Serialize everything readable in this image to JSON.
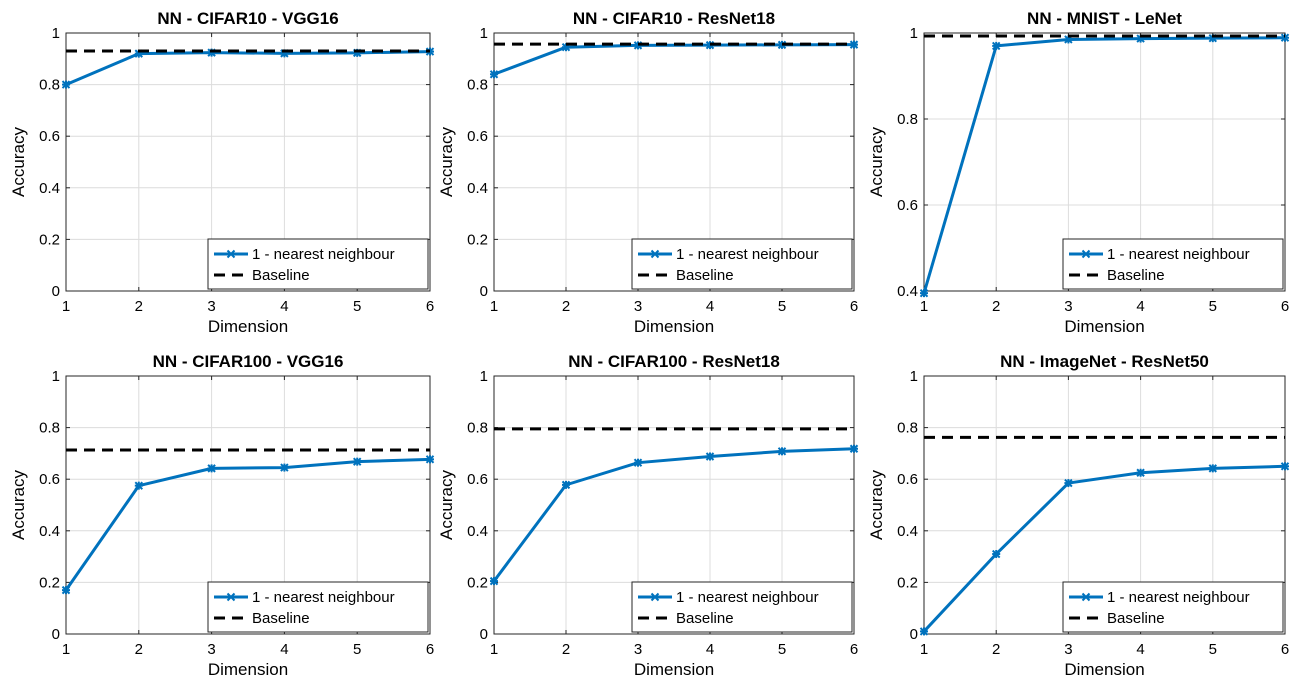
{
  "colors": {
    "series": "#0072bd",
    "baseline": "#000000",
    "grid": "#dcdcdc",
    "axes": "#262626"
  },
  "chart_data": [
    {
      "type": "line",
      "title": "NN - CIFAR10 - VGG16",
      "xlabel": "Dimension",
      "ylabel": "Accuracy",
      "xlim": [
        1,
        6
      ],
      "ylim": [
        0,
        1
      ],
      "xticks": [
        1,
        2,
        3,
        4,
        5,
        6
      ],
      "yticks": [
        0,
        0.2,
        0.4,
        0.6,
        0.8,
        1
      ],
      "ytick_labels": [
        "0",
        "0.2",
        "0.4",
        "0.6",
        "0.8",
        "1"
      ],
      "grid": true,
      "legend_position": "bottom-right",
      "x": [
        1,
        2,
        3,
        4,
        5,
        6
      ],
      "series": [
        {
          "name": "1 - nearest neighbour",
          "style": "solid-marker",
          "values": [
            0.8,
            0.92,
            0.924,
            0.921,
            0.923,
            0.928
          ]
        },
        {
          "name": "Baseline",
          "style": "dashed",
          "values": [
            0.93,
            0.93,
            0.93,
            0.93,
            0.93,
            0.93
          ]
        }
      ]
    },
    {
      "type": "line",
      "title": "NN - CIFAR10 - ResNet18",
      "xlabel": "Dimension",
      "ylabel": "Accuracy",
      "xlim": [
        1,
        6
      ],
      "ylim": [
        0,
        1
      ],
      "xticks": [
        1,
        2,
        3,
        4,
        5,
        6
      ],
      "yticks": [
        0,
        0.2,
        0.4,
        0.6,
        0.8,
        1
      ],
      "ytick_labels": [
        "0",
        "0.2",
        "0.4",
        "0.6",
        "0.8",
        "1"
      ],
      "grid": true,
      "legend_position": "bottom-right",
      "x": [
        1,
        2,
        3,
        4,
        5,
        6
      ],
      "series": [
        {
          "name": "1 - nearest neighbour",
          "style": "solid-marker",
          "values": [
            0.84,
            0.945,
            0.952,
            0.953,
            0.954,
            0.955
          ]
        },
        {
          "name": "Baseline",
          "style": "dashed",
          "values": [
            0.957,
            0.957,
            0.957,
            0.957,
            0.957,
            0.957
          ]
        }
      ]
    },
    {
      "type": "line",
      "title": "NN - MNIST - LeNet",
      "xlabel": "Dimension",
      "ylabel": "Accuracy",
      "xlim": [
        1,
        6
      ],
      "ylim": [
        0.4,
        1
      ],
      "xticks": [
        1,
        2,
        3,
        4,
        5,
        6
      ],
      "yticks": [
        0.4,
        0.6,
        0.8,
        1
      ],
      "ytick_labels": [
        "0.4",
        "0.6",
        "0.8",
        "1"
      ],
      "grid": true,
      "legend_position": "bottom-right",
      "x": [
        1,
        2,
        3,
        4,
        5,
        6
      ],
      "series": [
        {
          "name": "1 - nearest neighbour",
          "style": "solid-marker",
          "values": [
            0.395,
            0.97,
            0.985,
            0.987,
            0.988,
            0.989
          ]
        },
        {
          "name": "Baseline",
          "style": "dashed",
          "values": [
            0.993,
            0.993,
            0.993,
            0.993,
            0.993,
            0.993
          ]
        }
      ]
    },
    {
      "type": "line",
      "title": "NN - CIFAR100 - VGG16",
      "xlabel": "Dimension",
      "ylabel": "Accuracy",
      "xlim": [
        1,
        6
      ],
      "ylim": [
        0,
        1
      ],
      "xticks": [
        1,
        2,
        3,
        4,
        5,
        6
      ],
      "yticks": [
        0,
        0.2,
        0.4,
        0.6,
        0.8,
        1
      ],
      "ytick_labels": [
        "0",
        "0.2",
        "0.4",
        "0.6",
        "0.8",
        "1"
      ],
      "grid": true,
      "legend_position": "bottom-right",
      "x": [
        1,
        2,
        3,
        4,
        5,
        6
      ],
      "series": [
        {
          "name": "1 - nearest neighbour",
          "style": "solid-marker",
          "values": [
            0.17,
            0.575,
            0.642,
            0.645,
            0.668,
            0.677
          ]
        },
        {
          "name": "Baseline",
          "style": "dashed",
          "values": [
            0.713,
            0.713,
            0.713,
            0.713,
            0.713,
            0.713
          ]
        }
      ]
    },
    {
      "type": "line",
      "title": "NN - CIFAR100 - ResNet18",
      "xlabel": "Dimension",
      "ylabel": "Accuracy",
      "xlim": [
        1,
        6
      ],
      "ylim": [
        0,
        1
      ],
      "xticks": [
        1,
        2,
        3,
        4,
        5,
        6
      ],
      "yticks": [
        0,
        0.2,
        0.4,
        0.6,
        0.8,
        1
      ],
      "ytick_labels": [
        "0",
        "0.2",
        "0.4",
        "0.6",
        "0.8",
        "1"
      ],
      "grid": true,
      "legend_position": "bottom-right",
      "x": [
        1,
        2,
        3,
        4,
        5,
        6
      ],
      "series": [
        {
          "name": "1 - nearest neighbour",
          "style": "solid-marker",
          "values": [
            0.205,
            0.578,
            0.664,
            0.688,
            0.708,
            0.718
          ]
        },
        {
          "name": "Baseline",
          "style": "dashed",
          "values": [
            0.795,
            0.795,
            0.795,
            0.795,
            0.795,
            0.795
          ]
        }
      ]
    },
    {
      "type": "line",
      "title": "NN - ImageNet - ResNet50",
      "xlabel": "Dimension",
      "ylabel": "Accuracy",
      "xlim": [
        1,
        6
      ],
      "ylim": [
        0,
        1
      ],
      "xticks": [
        1,
        2,
        3,
        4,
        5,
        6
      ],
      "yticks": [
        0,
        0.2,
        0.4,
        0.6,
        0.8,
        1
      ],
      "ytick_labels": [
        "0",
        "0.2",
        "0.4",
        "0.6",
        "0.8",
        "1"
      ],
      "grid": true,
      "legend_position": "bottom-right",
      "x": [
        1,
        2,
        3,
        4,
        5,
        6
      ],
      "series": [
        {
          "name": "1 - nearest neighbour",
          "style": "solid-marker",
          "values": [
            0.01,
            0.31,
            0.585,
            0.625,
            0.642,
            0.65
          ]
        },
        {
          "name": "Baseline",
          "style": "dashed",
          "values": [
            0.762,
            0.762,
            0.762,
            0.762,
            0.762,
            0.762
          ]
        }
      ]
    }
  ]
}
